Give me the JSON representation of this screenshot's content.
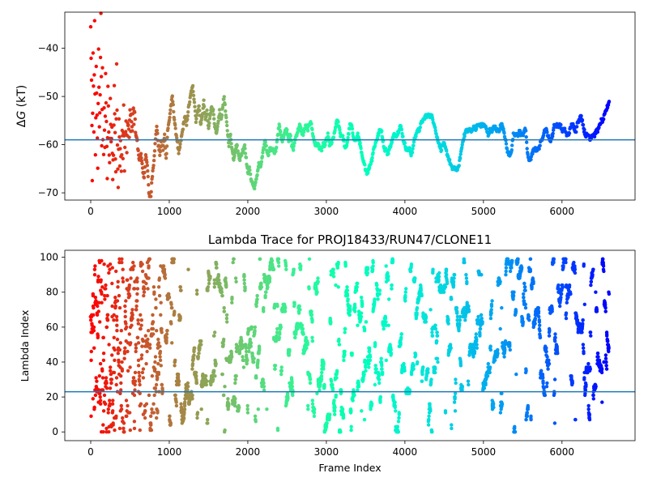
{
  "chart_data": [
    {
      "type": "scatter",
      "title": "",
      "xlabel": "",
      "ylabel": "ΔG (kT)",
      "ylabel_parts": {
        "delta": "Δ",
        "var": "G",
        "unit": " (kT)"
      },
      "xlim": [
        -330,
        6930
      ],
      "ylim": [
        -71.5,
        -32.5
      ],
      "xticks": [
        0,
        1000,
        2000,
        3000,
        4000,
        5000,
        6000
      ],
      "yticks": [
        -70,
        -60,
        -50,
        -40
      ],
      "hline": -59,
      "hline_color": "#1f77b4",
      "colormap": "rainbow (early frames red, late frames violet)",
      "trace_points": [
        [
          0,
          -36
        ],
        [
          10,
          -47
        ],
        [
          20,
          -68
        ],
        [
          30,
          -40
        ],
        [
          40,
          -58
        ],
        [
          50,
          -35
        ],
        [
          60,
          -63
        ],
        [
          70,
          -44
        ],
        [
          80,
          -53
        ],
        [
          90,
          -66
        ],
        [
          100,
          -39
        ],
        [
          110,
          -57
        ],
        [
          120,
          -49
        ],
        [
          130,
          -34
        ],
        [
          140,
          -60
        ],
        [
          150,
          -45
        ],
        [
          160,
          -71
        ],
        [
          170,
          -52
        ],
        [
          180,
          -62
        ],
        [
          190,
          -46
        ],
        [
          200,
          -55
        ],
        [
          210,
          -68
        ],
        [
          220,
          -48
        ],
        [
          230,
          -58
        ],
        [
          240,
          -64
        ],
        [
          250,
          -51
        ],
        [
          260,
          -60
        ],
        [
          270,
          -56
        ],
        [
          280,
          -67
        ],
        [
          290,
          -62
        ],
        [
          300,
          -47
        ],
        [
          310,
          -58
        ],
        [
          320,
          -65
        ],
        [
          330,
          -43
        ],
        [
          340,
          -61
        ],
        [
          350,
          -69
        ],
        [
          360,
          -55
        ],
        [
          370,
          -63
        ],
        [
          380,
          -59
        ],
        [
          390,
          -66
        ],
        [
          400,
          -57
        ],
        [
          410,
          -62
        ],
        [
          420,
          -53
        ],
        [
          430,
          -64
        ],
        [
          440,
          -58
        ],
        [
          450,
          -56
        ],
        [
          460,
          -61
        ],
        [
          470,
          -57
        ],
        [
          480,
          -55
        ],
        [
          490,
          -59
        ],
        [
          500,
          -53
        ],
        [
          510,
          -56
        ],
        [
          520,
          -54
        ],
        [
          530,
          -57
        ],
        [
          540,
          -52
        ],
        [
          550,
          -55
        ],
        [
          560,
          -53
        ],
        [
          580,
          -59
        ],
        [
          600,
          -61
        ],
        [
          620,
          -63
        ],
        [
          640,
          -62
        ],
        [
          660,
          -65
        ],
        [
          680,
          -67
        ],
        [
          700,
          -62
        ],
        [
          720,
          -64
        ],
        [
          740,
          -70
        ],
        [
          760,
          -72
        ],
        [
          780,
          -67
        ],
        [
          800,
          -64
        ],
        [
          820,
          -60
        ],
        [
          840,
          -56
        ],
        [
          860,
          -60
        ],
        [
          880,
          -62
        ],
        [
          900,
          -59
        ],
        [
          920,
          -61
        ],
        [
          940,
          -58
        ],
        [
          960,
          -63
        ],
        [
          980,
          -57
        ],
        [
          1000,
          -55
        ],
        [
          1020,
          -52
        ],
        [
          1040,
          -50
        ],
        [
          1060,
          -54
        ],
        [
          1080,
          -57
        ],
        [
          1100,
          -59
        ],
        [
          1120,
          -62
        ],
        [
          1140,
          -60
        ],
        [
          1160,
          -58
        ],
        [
          1180,
          -56
        ],
        [
          1200,
          -54
        ],
        [
          1220,
          -56
        ],
        [
          1240,
          -53
        ],
        [
          1260,
          -51
        ],
        [
          1280,
          -49
        ],
        [
          1300,
          -48
        ],
        [
          1320,
          -51
        ],
        [
          1340,
          -55
        ],
        [
          1360,
          -53
        ],
        [
          1380,
          -52
        ],
        [
          1400,
          -56
        ],
        [
          1420,
          -54
        ],
        [
          1440,
          -51
        ],
        [
          1460,
          -55
        ],
        [
          1480,
          -53
        ],
        [
          1500,
          -57
        ],
        [
          1520,
          -54
        ],
        [
          1540,
          -52
        ],
        [
          1560,
          -53
        ],
        [
          1580,
          -56
        ],
        [
          1600,
          -58
        ],
        [
          1620,
          -56
        ],
        [
          1640,
          -53
        ],
        [
          1660,
          -55
        ],
        [
          1680,
          -52
        ],
        [
          1700,
          -50
        ],
        [
          1720,
          -54
        ],
        [
          1740,
          -57
        ],
        [
          1760,
          -60
        ],
        [
          1780,
          -58
        ],
        [
          1800,
          -61
        ],
        [
          1820,
          -63
        ],
        [
          1840,
          -61
        ],
        [
          1860,
          -60
        ],
        [
          1880,
          -62
        ],
        [
          1900,
          -63
        ],
        [
          1920,
          -62
        ],
        [
          1940,
          -61
        ],
        [
          1960,
          -60
        ],
        [
          1980,
          -63
        ],
        [
          2000,
          -66
        ],
        [
          2020,
          -65
        ],
        [
          2040,
          -67
        ],
        [
          2060,
          -68
        ],
        [
          2080,
          -69
        ],
        [
          2100,
          -68
        ],
        [
          2120,
          -66
        ],
        [
          2140,
          -64
        ],
        [
          2160,
          -65
        ],
        [
          2180,
          -63
        ],
        [
          2200,
          -61
        ],
        [
          2220,
          -59
        ],
        [
          2240,
          -61
        ],
        [
          2260,
          -62
        ],
        [
          2280,
          -61
        ],
        [
          2300,
          -61
        ],
        [
          2320,
          -61
        ],
        [
          2340,
          -62
        ],
        [
          2360,
          -61
        ],
        [
          2380,
          -58
        ],
        [
          2400,
          -56
        ],
        [
          2420,
          -58
        ],
        [
          2440,
          -59
        ],
        [
          2460,
          -58
        ],
        [
          2480,
          -57
        ],
        [
          2500,
          -57
        ],
        [
          2520,
          -59
        ],
        [
          2540,
          -58
        ],
        [
          2560,
          -60
        ],
        [
          2580,
          -61
        ],
        [
          2600,
          -59
        ],
        [
          2620,
          -58
        ],
        [
          2640,
          -57
        ],
        [
          2660,
          -56
        ],
        [
          2680,
          -57
        ],
        [
          2700,
          -58
        ],
        [
          2720,
          -57
        ],
        [
          2740,
          -56
        ],
        [
          2760,
          -57
        ],
        [
          2780,
          -56
        ],
        [
          2800,
          -55
        ],
        [
          2820,
          -57
        ],
        [
          2840,
          -59
        ],
        [
          2860,
          -60
        ],
        [
          2880,
          -60
        ],
        [
          2900,
          -60
        ],
        [
          2920,
          -61
        ],
        [
          2940,
          -61
        ],
        [
          2960,
          -60
        ],
        [
          2980,
          -60
        ],
        [
          3000,
          -59
        ],
        [
          3020,
          -58
        ],
        [
          3040,
          -60
        ],
        [
          3060,
          -60
        ],
        [
          3080,
          -59
        ],
        [
          3100,
          -58
        ],
        [
          3120,
          -56
        ],
        [
          3140,
          -55
        ],
        [
          3160,
          -56
        ],
        [
          3180,
          -58
        ],
        [
          3200,
          -58
        ],
        [
          3220,
          -59
        ],
        [
          3240,
          -61
        ],
        [
          3260,
          -60
        ],
        [
          3280,
          -58
        ],
        [
          3300,
          -56
        ],
        [
          3320,
          -56
        ],
        [
          3340,
          -58
        ],
        [
          3360,
          -59
        ],
        [
          3380,
          -59
        ],
        [
          3400,
          -58
        ],
        [
          3420,
          -59
        ],
        [
          3440,
          -61
        ],
        [
          3460,
          -63
        ],
        [
          3480,
          -64
        ],
        [
          3500,
          -65
        ],
        [
          3520,
          -66
        ],
        [
          3540,
          -65
        ],
        [
          3560,
          -64
        ],
        [
          3580,
          -63
        ],
        [
          3600,
          -61
        ],
        [
          3620,
          -60
        ],
        [
          3640,
          -59
        ],
        [
          3660,
          -58
        ],
        [
          3680,
          -57
        ],
        [
          3700,
          -57
        ],
        [
          3720,
          -59
        ],
        [
          3740,
          -61
        ],
        [
          3760,
          -61
        ],
        [
          3780,
          -62
        ],
        [
          3800,
          -61
        ],
        [
          3820,
          -60
        ],
        [
          3840,
          -59
        ],
        [
          3860,
          -58
        ],
        [
          3880,
          -58
        ],
        [
          3900,
          -58
        ],
        [
          3920,
          -57
        ],
        [
          3940,
          -56
        ],
        [
          3960,
          -57
        ],
        [
          3980,
          -59
        ],
        [
          4000,
          -60
        ],
        [
          4020,
          -61
        ],
        [
          4040,
          -61
        ],
        [
          4060,
          -61
        ],
        [
          4080,
          -62
        ],
        [
          4100,
          -61
        ],
        [
          4120,
          -59
        ],
        [
          4140,
          -58
        ],
        [
          4160,
          -57
        ],
        [
          4180,
          -57
        ],
        [
          4200,
          -56
        ],
        [
          4220,
          -55
        ],
        [
          4240,
          -55
        ],
        [
          4260,
          -54
        ],
        [
          4280,
          -54
        ],
        [
          4300,
          -54
        ],
        [
          4320,
          -54
        ],
        [
          4340,
          -54
        ],
        [
          4360,
          -55
        ],
        [
          4380,
          -56
        ],
        [
          4400,
          -58
        ],
        [
          4420,
          -59
        ],
        [
          4440,
          -60
        ],
        [
          4460,
          -61
        ],
        [
          4480,
          -60
        ],
        [
          4500,
          -60
        ],
        [
          4520,
          -61
        ],
        [
          4540,
          -62
        ],
        [
          4560,
          -63
        ],
        [
          4580,
          -64
        ],
        [
          4600,
          -65
        ],
        [
          4620,
          -65
        ],
        [
          4640,
          -65
        ],
        [
          4660,
          -65
        ],
        [
          4680,
          -65
        ],
        [
          4700,
          -63
        ],
        [
          4720,
          -61
        ],
        [
          4740,
          -59
        ],
        [
          4760,
          -58
        ],
        [
          4780,
          -57
        ],
        [
          4800,
          -57
        ],
        [
          4820,
          -57
        ],
        [
          4840,
          -57
        ],
        [
          4860,
          -57
        ],
        [
          4880,
          -56
        ],
        [
          4900,
          -57
        ],
        [
          4920,
          -56
        ],
        [
          4940,
          -56
        ],
        [
          4960,
          -56
        ],
        [
          4980,
          -56
        ],
        [
          5000,
          -56
        ],
        [
          5020,
          -56
        ],
        [
          5040,
          -57
        ],
        [
          5060,
          -58
        ],
        [
          5080,
          -57
        ],
        [
          5100,
          -57
        ],
        [
          5120,
          -57
        ],
        [
          5140,
          -56
        ],
        [
          5160,
          -57
        ],
        [
          5180,
          -57
        ],
        [
          5200,
          -57
        ],
        [
          5220,
          -56
        ],
        [
          5240,
          -56
        ],
        [
          5260,
          -57
        ],
        [
          5280,
          -59
        ],
        [
          5300,
          -61
        ],
        [
          5320,
          -62
        ],
        [
          5340,
          -62
        ],
        [
          5360,
          -61
        ],
        [
          5380,
          -58
        ],
        [
          5400,
          -58
        ],
        [
          5420,
          -58
        ],
        [
          5440,
          -58
        ],
        [
          5460,
          -57
        ],
        [
          5480,
          -58
        ],
        [
          5500,
          -58
        ],
        [
          5520,
          -57
        ],
        [
          5540,
          -57
        ],
        [
          5560,
          -62
        ],
        [
          5580,
          -63
        ],
        [
          5600,
          -63
        ],
        [
          5620,
          -62
        ],
        [
          5640,
          -61
        ],
        [
          5660,
          -61
        ],
        [
          5680,
          -61
        ],
        [
          5700,
          -61
        ],
        [
          5720,
          -60
        ],
        [
          5740,
          -59
        ],
        [
          5760,
          -58
        ],
        [
          5780,
          -57
        ],
        [
          5800,
          -57
        ],
        [
          5820,
          -58
        ],
        [
          5840,
          -59
        ],
        [
          5860,
          -59
        ],
        [
          5880,
          -58
        ],
        [
          5900,
          -56
        ],
        [
          5920,
          -56
        ],
        [
          5940,
          -56
        ],
        [
          5960,
          -56
        ],
        [
          5980,
          -56
        ],
        [
          6000,
          -57
        ],
        [
          6020,
          -57
        ],
        [
          6040,
          -57
        ],
        [
          6060,
          -58
        ],
        [
          6080,
          -58
        ],
        [
          6100,
          -57
        ],
        [
          6120,
          -56
        ],
        [
          6140,
          -56
        ],
        [
          6160,
          -57
        ],
        [
          6180,
          -57
        ],
        [
          6200,
          -55
        ],
        [
          6220,
          -55
        ],
        [
          6240,
          -54
        ],
        [
          6260,
          -55
        ],
        [
          6280,
          -57
        ],
        [
          6300,
          -58
        ],
        [
          6320,
          -58
        ],
        [
          6340,
          -58
        ],
        [
          6360,
          -59
        ],
        [
          6380,
          -58
        ],
        [
          6400,
          -58
        ],
        [
          6420,
          -58
        ],
        [
          6440,
          -57
        ],
        [
          6460,
          -57
        ],
        [
          6480,
          -56
        ],
        [
          6500,
          -55
        ],
        [
          6520,
          -55
        ],
        [
          6540,
          -54
        ],
        [
          6560,
          -53
        ],
        [
          6580,
          -52
        ],
        [
          6600,
          -51
        ]
      ]
    },
    {
      "type": "scatter",
      "title": "Lambda Trace for PROJ18433/RUN47/CLONE11",
      "xlabel": "Frame Index",
      "ylabel": "Lambda Index",
      "xlim": [
        -330,
        6930
      ],
      "ylim": [
        -5,
        104
      ],
      "xticks": [
        0,
        1000,
        2000,
        3000,
        4000,
        5000,
        6000
      ],
      "yticks": [
        0,
        20,
        40,
        60,
        80,
        100
      ],
      "hline": 23,
      "hline_color": "#1f77b4",
      "colormap": "rainbow (early frames red, late frames violet)",
      "frame_range": [
        0,
        6600
      ],
      "lambda_range": [
        0,
        99
      ],
      "note": "dense scatter of sampled lambda index (0-99) for every frame"
    }
  ]
}
